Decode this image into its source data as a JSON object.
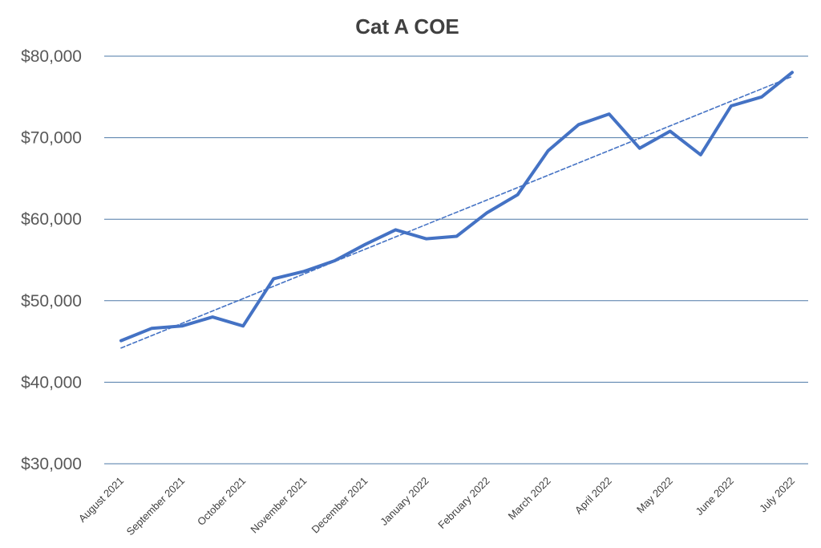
{
  "chart_data": {
    "type": "line",
    "title": "Cat A COE",
    "xlabel": "",
    "ylabel": "",
    "ylim": [
      30000,
      80000
    ],
    "yticks": [
      30000,
      40000,
      50000,
      60000,
      70000,
      80000
    ],
    "ytick_labels": [
      "$30,000",
      "$40,000",
      "$50,000",
      "$60,000",
      "$70,000",
      "$80,000"
    ],
    "categories": [
      "August 2021",
      "September 2021",
      "October 2021",
      "November 2021",
      "December 2021",
      "January 2022",
      "February 2022",
      "March 2022",
      "April 2022",
      "May 2022",
      "June 2022",
      "July 2022"
    ],
    "x": [
      0,
      0.5,
      1,
      1.5,
      2,
      2.5,
      3,
      3.5,
      4,
      4.5,
      5,
      5.5,
      6,
      6.5,
      7,
      7.5,
      8,
      8.5,
      9,
      9.5,
      10,
      10.5,
      11
    ],
    "series": [
      {
        "name": "Cat A COE",
        "color": "#4472c4",
        "values": [
          45100,
          46600,
          46900,
          48000,
          46900,
          52700,
          53600,
          54900,
          56900,
          58700,
          57600,
          57900,
          60800,
          63000,
          68400,
          71600,
          72900,
          68700,
          70800,
          67900,
          73900,
          75000,
          78000
        ]
      },
      {
        "name": "Linear trend",
        "color": "#4472c4",
        "style": "dashed",
        "values": [
          44200,
          77500
        ],
        "x": [
          0,
          11
        ]
      }
    ],
    "grid": true,
    "gridline_color": "#4e79a7",
    "legend": "none"
  }
}
